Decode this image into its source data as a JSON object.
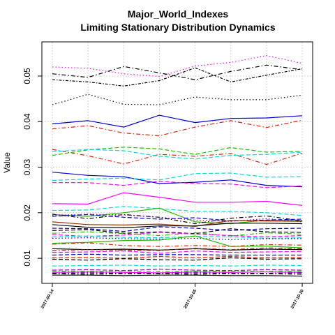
{
  "chart_data": {
    "type": "line",
    "title": "Major_World_Indexes",
    "subtitle": "Limiting Stationary Distribution Dynamics",
    "xlabel": "",
    "ylabel": "Value",
    "ylim": [
      0.0045,
      0.0575
    ],
    "yticks": [
      0.01,
      0.02,
      0.03,
      0.04,
      0.05
    ],
    "ytick_labels": [
      "0.01",
      "0.02",
      "0.03",
      "0.04",
      "0.05"
    ],
    "x_tick_labels": [
      "2017-09-14",
      "2017-10-05",
      "2017-10-20"
    ],
    "grid": true,
    "series": [
      {
        "color": "#FF00FF",
        "dash": "dot",
        "values": [
          0.052,
          0.0517,
          0.0505,
          0.0499,
          0.0522,
          0.053,
          0.0545,
          0.0528
        ]
      },
      {
        "color": "#000000",
        "dash": "dashdot",
        "values": [
          0.0505,
          0.0497,
          0.0521,
          0.0507,
          0.0492,
          0.051,
          0.0524,
          0.0514
        ]
      },
      {
        "color": "#000000",
        "dash": "dashdot2",
        "values": [
          0.0492,
          0.0487,
          0.0478,
          0.049,
          0.0518,
          0.0487,
          0.0502,
          0.0516
        ]
      },
      {
        "color": "#000000",
        "dash": "dot",
        "values": [
          0.0437,
          0.046,
          0.0438,
          0.0437,
          0.0454,
          0.0448,
          0.0448,
          0.0458
        ]
      },
      {
        "color": "#0000CC",
        "dash": "solid",
        "values": [
          0.0395,
          0.0402,
          0.0388,
          0.0414,
          0.0398,
          0.0407,
          0.0408,
          0.0413
        ]
      },
      {
        "color": "#DD2200",
        "dash": "dashdot",
        "values": [
          0.0384,
          0.0391,
          0.0375,
          0.0369,
          0.0388,
          0.0402,
          0.0387,
          0.0403
        ]
      },
      {
        "color": "#DD2200",
        "dash": "dashdot",
        "values": [
          0.0339,
          0.0325,
          0.0307,
          0.0328,
          0.0324,
          0.033,
          0.0306,
          0.0331
        ]
      },
      {
        "color": "#22BB00",
        "dash": "dash",
        "values": [
          0.0326,
          0.0338,
          0.0344,
          0.034,
          0.0328,
          0.0343,
          0.0333,
          0.0335
        ]
      },
      {
        "color": "#00DDDD",
        "dash": "dash",
        "values": [
          0.0334,
          0.0339,
          0.0336,
          0.0324,
          0.0318,
          0.0326,
          0.0328,
          0.0333
        ]
      },
      {
        "color": "#0000CC",
        "dash": "solid",
        "values": [
          0.0289,
          0.0282,
          0.0279,
          0.0264,
          0.0267,
          0.0272,
          0.026,
          0.0257
        ]
      },
      {
        "color": "#00DDDD",
        "dash": "dash",
        "values": [
          0.0271,
          0.0274,
          0.0276,
          0.0272,
          0.0286,
          0.0287,
          0.0278,
          0.0279
        ]
      },
      {
        "color": "#FF00FF",
        "dash": "dash",
        "values": [
          0.0266,
          0.0266,
          0.026,
          0.0269,
          0.0264,
          0.0263,
          0.0255,
          0.0259
        ]
      },
      {
        "color": "#FF00FF",
        "dash": "solid",
        "values": [
          0.022,
          0.0219,
          0.0244,
          0.0234,
          0.0223,
          0.0223,
          0.0225,
          0.0216
        ]
      },
      {
        "color": "#00DDDD",
        "dash": "dash",
        "values": [
          0.0205,
          0.0206,
          0.0214,
          0.0209,
          0.0203,
          0.0203,
          0.02,
          0.0194
        ]
      },
      {
        "color": "#22BB00",
        "dash": "solid",
        "values": [
          0.0196,
          0.0192,
          0.02,
          0.021,
          0.018,
          0.0176,
          0.0184,
          0.0183
        ]
      },
      {
        "color": "#000000",
        "dash": "dashdot",
        "values": [
          0.0197,
          0.0187,
          0.0196,
          0.019,
          0.0176,
          0.0188,
          0.0193,
          0.0182
        ]
      },
      {
        "color": "#0000CC",
        "dash": "dash",
        "values": [
          0.0192,
          0.0196,
          0.019,
          0.0186,
          0.0189,
          0.0182,
          0.0184,
          0.0186
        ]
      },
      {
        "color": "#9900CC",
        "dash": "dot",
        "values": [
          0.0194,
          0.0197,
          0.0195,
          0.019,
          0.0184,
          0.0181,
          0.0187,
          0.018
        ]
      },
      {
        "color": "#993300",
        "dash": "solid",
        "values": [
          0.018,
          0.0174,
          0.0173,
          0.0175,
          0.017,
          0.0183,
          0.0182,
          0.0181
        ]
      },
      {
        "color": "#000000",
        "dash": "solid",
        "values": [
          0.0174,
          0.0168,
          0.0167,
          0.0171,
          0.0171,
          0.0177,
          0.0177,
          0.0176
        ]
      },
      {
        "color": "#0000CC",
        "dash": "dash",
        "values": [
          0.0166,
          0.0165,
          0.0159,
          0.0169,
          0.0166,
          0.0161,
          0.0165,
          0.0166
        ]
      },
      {
        "color": "#000000",
        "dash": "dash",
        "values": [
          0.0161,
          0.0163,
          0.0155,
          0.0158,
          0.0154,
          0.0165,
          0.0158,
          0.0157
        ]
      },
      {
        "color": "#22BB00",
        "dash": "dashdot",
        "values": [
          0.0155,
          0.0158,
          0.0154,
          0.015,
          0.0156,
          0.0149,
          0.0156,
          0.0153
        ]
      },
      {
        "color": "#FF00FF",
        "dash": "dash",
        "values": [
          0.0152,
          0.0148,
          0.0151,
          0.0157,
          0.0153,
          0.015,
          0.0147,
          0.015
        ]
      },
      {
        "color": "#00DDDD",
        "dash": "dash",
        "values": [
          0.0147,
          0.0149,
          0.0146,
          0.0145,
          0.0148,
          0.0147,
          0.0144,
          0.0145
        ]
      },
      {
        "color": "#0000CC",
        "dash": "dot",
        "values": [
          0.0144,
          0.0145,
          0.0143,
          0.0142,
          0.0144,
          0.0141,
          0.0143,
          0.0143
        ]
      },
      {
        "color": "#22BB00",
        "dash": "solid",
        "values": [
          0.0133,
          0.0135,
          0.0139,
          0.014,
          0.0149,
          0.0126,
          0.0127,
          0.0123
        ]
      },
      {
        "color": "#DD2200",
        "dash": "dashdot",
        "values": [
          0.0131,
          0.0134,
          0.0128,
          0.0126,
          0.0128,
          0.0126,
          0.013,
          0.0129
        ]
      },
      {
        "color": "#000000",
        "dash": "solid",
        "values": [
          0.0121,
          0.0119,
          0.012,
          0.0118,
          0.0121,
          0.0118,
          0.012,
          0.0119
        ]
      },
      {
        "color": "#993300",
        "dash": "dashdot",
        "values": [
          0.0117,
          0.0119,
          0.0118,
          0.0117,
          0.0122,
          0.0119,
          0.0123,
          0.0121
        ]
      },
      {
        "color": "#FF00FF",
        "dash": "dash",
        "values": [
          0.0113,
          0.0114,
          0.0116,
          0.0111,
          0.0116,
          0.0113,
          0.0114,
          0.0115
        ]
      },
      {
        "color": "#0000CC",
        "dash": "dash",
        "values": [
          0.0107,
          0.0109,
          0.0107,
          0.0108,
          0.0108,
          0.0107,
          0.0107,
          0.0107
        ]
      },
      {
        "color": "#DD2200",
        "dash": "dash",
        "values": [
          0.0101,
          0.0102,
          0.01,
          0.0104,
          0.0101,
          0.0104,
          0.0101,
          0.0102
        ]
      },
      {
        "color": "#000000",
        "dash": "dash",
        "values": [
          0.0098,
          0.0096,
          0.0099,
          0.0097,
          0.0096,
          0.0101,
          0.0098,
          0.0099
        ]
      },
      {
        "color": "#00DDDD",
        "dash": "dash",
        "values": [
          0.0083,
          0.0084,
          0.0085,
          0.0083,
          0.0084,
          0.0083,
          0.0085,
          0.0084
        ]
      },
      {
        "color": "#9900CC",
        "dash": "dash",
        "values": [
          0.0074,
          0.0075,
          0.0073,
          0.0076,
          0.0074,
          0.0073,
          0.0075,
          0.0074
        ]
      },
      {
        "color": "#22BB00",
        "dash": "dashdot",
        "values": [
          0.0071,
          0.0072,
          0.007,
          0.0071,
          0.0072,
          0.0071,
          0.0071,
          0.0072
        ]
      },
      {
        "color": "#FF00FF",
        "dash": "solid",
        "values": [
          0.0069,
          0.007,
          0.0069,
          0.0068,
          0.007,
          0.0069,
          0.007,
          0.0069
        ]
      },
      {
        "color": "#0000CC",
        "dash": "dashdot",
        "values": [
          0.0067,
          0.0068,
          0.0067,
          0.0067,
          0.0068,
          0.0067,
          0.0067,
          0.0068
        ]
      },
      {
        "color": "#000000",
        "dash": "dashdot",
        "values": [
          0.0066,
          0.0065,
          0.0066,
          0.0066,
          0.0065,
          0.0066,
          0.0066,
          0.0065
        ]
      },
      {
        "color": "#000000",
        "dash": "solid",
        "values": [
          0.0063,
          0.0063,
          0.0062,
          0.0063,
          0.0063,
          0.0062,
          0.0062,
          0.0061
        ]
      }
    ]
  }
}
